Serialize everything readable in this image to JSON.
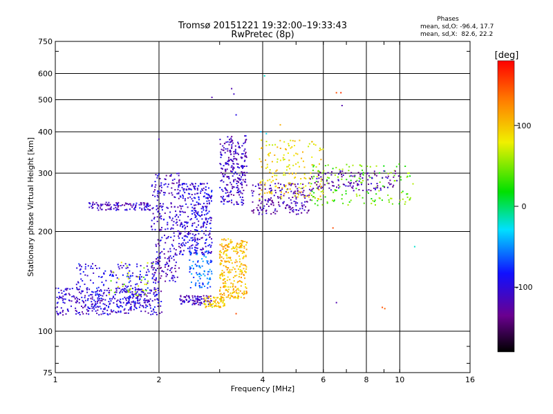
{
  "chart_data": {
    "type": "scatter",
    "title": "Tromsø 20151221 19:32:00–19:33:43",
    "subtitle": "RwPretec (8p)",
    "xlabel": "Frequency [MHz]",
    "ylabel": "Stationary phase Virtual Height [km]",
    "x_scale": "log",
    "y_scale": "log",
    "xlim": [
      1,
      16
    ],
    "ylim": [
      75,
      750
    ],
    "x_ticks": [
      1,
      2,
      4,
      6,
      8,
      10,
      16
    ],
    "y_ticks": [
      75,
      100,
      200,
      300,
      400,
      500,
      600,
      750
    ],
    "grid": true,
    "phase_stats": {
      "title": "Phases",
      "line_o": "mean, sd,O: -96.4, 17.7",
      "line_x": "mean, sd,X:  82.6, 22.2"
    },
    "colorbar": {
      "label": "[deg]",
      "range": [
        -180,
        180
      ],
      "ticks": [
        100,
        0,
        -100
      ]
    },
    "clusters": [
      {
        "x": [
          1.0,
          2.05
        ],
        "y": [
          112,
          135
        ],
        "phase": -105,
        "n": 320
      },
      {
        "x": [
          1.15,
          2.0
        ],
        "y": [
          118,
          160
        ],
        "phase": -95,
        "n": 220
      },
      {
        "x": [
          1.35,
          2.0
        ],
        "y": [
          128,
          162
        ],
        "phase": 60,
        "n": 40
      },
      {
        "x": [
          1.25,
          1.9
        ],
        "y": [
          232,
          245
        ],
        "phase": -110,
        "n": 110
      },
      {
        "x": [
          1.9,
          2.3
        ],
        "y": [
          140,
          300
        ],
        "phase": -110,
        "n": 260
      },
      {
        "x": [
          2.3,
          2.85
        ],
        "y": [
          120,
          128
        ],
        "phase": -110,
        "n": 90
      },
      {
        "x": [
          2.3,
          2.85
        ],
        "y": [
          170,
          280
        ],
        "phase": -100,
        "n": 330
      },
      {
        "x": [
          2.45,
          2.85
        ],
        "y": [
          135,
          175
        ],
        "phase": -60,
        "n": 90
      },
      {
        "x": [
          2.7,
          3.1
        ],
        "y": [
          118,
          128
        ],
        "phase": 95,
        "n": 70
      },
      {
        "x": [
          3.0,
          3.6
        ],
        "y": [
          125,
          190
        ],
        "phase": 105,
        "n": 280
      },
      {
        "x": [
          3.0,
          3.6
        ],
        "y": [
          240,
          390
        ],
        "phase": -110,
        "n": 260
      },
      {
        "x": [
          3.7,
          5.5
        ],
        "y": [
          225,
          280
        ],
        "phase": -120,
        "n": 180
      },
      {
        "x": [
          3.9,
          6.0
        ],
        "y": [
          250,
          380
        ],
        "phase": 90,
        "n": 170
      },
      {
        "x": [
          5.5,
          11.0
        ],
        "y": [
          240,
          320
        ],
        "phase": 40,
        "n": 150
      },
      {
        "x": [
          5.5,
          10.0
        ],
        "y": [
          265,
          305
        ],
        "phase": -120,
        "n": 120
      }
    ],
    "outliers": [
      {
        "x": 3.25,
        "y": 540,
        "phase": -120
      },
      {
        "x": 3.3,
        "y": 520,
        "phase": -110
      },
      {
        "x": 3.35,
        "y": 450,
        "phase": -95
      },
      {
        "x": 4.05,
        "y": 590,
        "phase": -20
      },
      {
        "x": 3.95,
        "y": 400,
        "phase": -40
      },
      {
        "x": 4.1,
        "y": 395,
        "phase": -30
      },
      {
        "x": 4.5,
        "y": 420,
        "phase": 110
      },
      {
        "x": 6.55,
        "y": 525,
        "phase": 150
      },
      {
        "x": 6.75,
        "y": 525,
        "phase": 160
      },
      {
        "x": 6.8,
        "y": 480,
        "phase": -120
      },
      {
        "x": 6.55,
        "y": 122,
        "phase": -120
      },
      {
        "x": 8.9,
        "y": 118,
        "phase": 150
      },
      {
        "x": 9.05,
        "y": 117,
        "phase": 140
      },
      {
        "x": 3.35,
        "y": 113,
        "phase": 150
      },
      {
        "x": 11.05,
        "y": 180,
        "phase": -20
      },
      {
        "x": 2.85,
        "y": 508,
        "phase": -120
      },
      {
        "x": 2.0,
        "y": 380,
        "phase": -110
      },
      {
        "x": 6.4,
        "y": 205,
        "phase": 150
      }
    ]
  }
}
